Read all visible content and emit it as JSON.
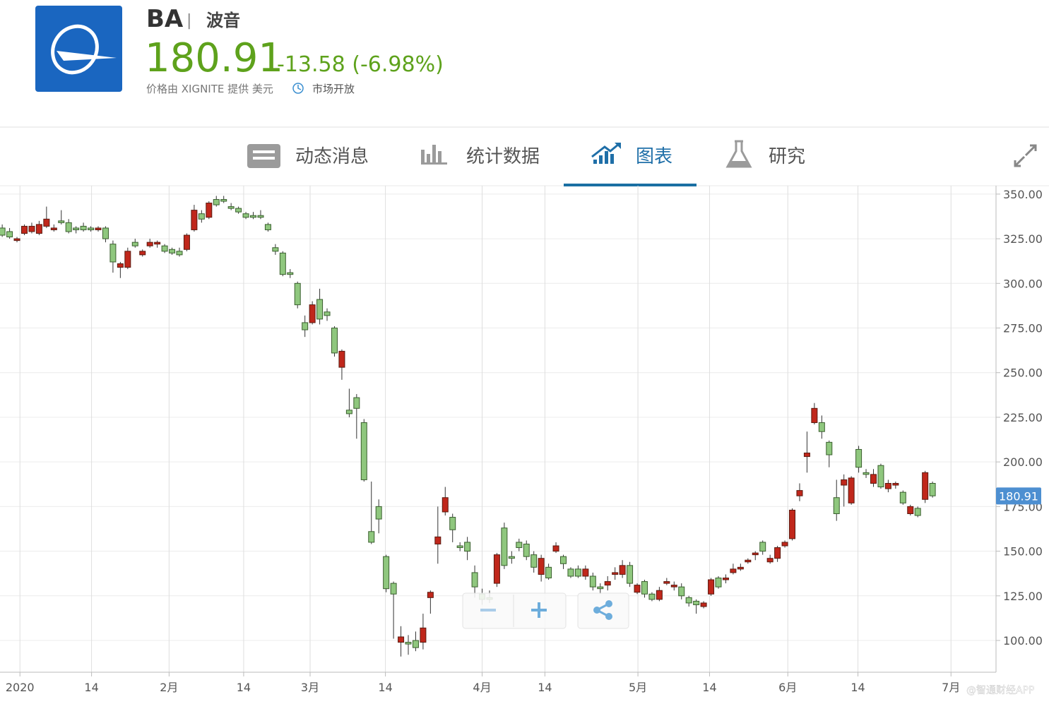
{
  "header": {
    "ticker": "BA",
    "name": "波音",
    "price": "180.91",
    "change": "-13.58 (-6.98%)",
    "source": "价格由 XIGNITE 提供 美元",
    "status": "市场开放"
  },
  "tabs": [
    "动态消息",
    "统计数据",
    "图表",
    "研究"
  ],
  "active_tab": 2,
  "watermark": "@智通财经APP",
  "chart_data": {
    "type": "candlestick",
    "up_color": "#c0271b",
    "down_color": "#8fc77e",
    "open": [
      331,
      329,
      324,
      328,
      329,
      328,
      332,
      330,
      335,
      334,
      331,
      332,
      331,
      330,
      331,
      322,
      309,
      309,
      323,
      316,
      321,
      322,
      321,
      319,
      318,
      319,
      330,
      339,
      337,
      347,
      347,
      343,
      342,
      339,
      338,
      338,
      333,
      320,
      317,
      306,
      300,
      278,
      278,
      291,
      284,
      275,
      253,
      229,
      236,
      222,
      161,
      175,
      147,
      132,
      99,
      99,
      100,
      99,
      124,
      154,
      172,
      169,
      153,
      155,
      138,
      126,
      124,
      132,
      163,
      147,
      155,
      154,
      148,
      137,
      141,
      150,
      147,
      140,
      140,
      136,
      136,
      130,
      131,
      137,
      137,
      142,
      127,
      133,
      126,
      123,
      132,
      130,
      130,
      124,
      122,
      119,
      126,
      135,
      134,
      138,
      140,
      144,
      148,
      155,
      144,
      146,
      153,
      157,
      181,
      203,
      222,
      222,
      211,
      180,
      187,
      177,
      207,
      194,
      188,
      198,
      185,
      187,
      183,
      171,
      174,
      179,
      188
    ],
    "high": [
      333,
      331,
      326,
      333,
      334,
      335,
      343,
      333,
      341,
      336,
      332,
      334,
      332,
      332,
      332,
      324,
      312,
      320,
      325,
      319,
      325,
      324,
      322,
      320,
      320,
      328,
      344,
      341,
      346,
      349,
      349,
      345,
      343,
      340,
      340,
      341,
      334,
      322,
      318,
      308,
      301,
      282,
      290,
      297,
      286,
      276,
      263,
      241,
      238,
      224,
      189,
      179,
      148,
      133,
      108,
      103,
      105,
      115,
      128,
      175,
      186,
      171,
      155,
      158,
      142,
      129,
      128,
      149,
      166,
      150,
      157,
      156,
      150,
      148,
      143,
      155,
      148,
      141,
      142,
      142,
      138,
      132,
      136,
      141,
      145,
      144,
      132,
      134,
      127,
      130,
      135,
      133,
      132,
      125,
      123,
      122,
      135,
      136,
      137,
      143,
      143,
      146,
      150,
      156,
      148,
      153,
      156,
      174,
      188,
      217,
      233,
      226,
      212,
      190,
      193,
      192,
      209,
      196,
      196,
      199,
      190,
      189,
      184,
      176,
      175,
      195,
      189
    ],
    "low": [
      326,
      325,
      323,
      327,
      328,
      327,
      331,
      329,
      333,
      328,
      328,
      329,
      329,
      329,
      323,
      306,
      303,
      308,
      320,
      315,
      320,
      320,
      317,
      316,
      315,
      318,
      329,
      334,
      336,
      343,
      345,
      341,
      339,
      336,
      336,
      336,
      329,
      316,
      304,
      303,
      286,
      270,
      277,
      277,
      279,
      259,
      246,
      225,
      213,
      189,
      154,
      160,
      127,
      101,
      91,
      92,
      94,
      95,
      115,
      143,
      170,
      155,
      150,
      145,
      124,
      120,
      121,
      130,
      140,
      143,
      150,
      145,
      138,
      133,
      134,
      149,
      140,
      135,
      135,
      134,
      128,
      126,
      128,
      134,
      135,
      130,
      126,
      124,
      122,
      122,
      131,
      128,
      123,
      119,
      115,
      118,
      125,
      129,
      132,
      137,
      139,
      143,
      145,
      148,
      143,
      144,
      152,
      156,
      178,
      194,
      221,
      213,
      197,
      167,
      175,
      176,
      194,
      191,
      186,
      185,
      183,
      185,
      176,
      170,
      169,
      177,
      180
    ],
    "close": [
      327,
      326,
      325,
      332,
      332,
      333,
      336,
      331,
      334,
      329,
      330,
      330,
      330,
      331,
      325,
      312,
      311,
      318,
      321,
      318,
      323,
      323,
      318,
      317,
      316,
      327,
      341,
      336,
      345,
      344,
      346,
      342,
      340,
      337,
      337,
      337,
      330,
      318,
      305,
      305,
      288,
      274,
      288,
      280,
      282,
      261,
      262,
      227,
      230,
      190,
      155,
      168,
      129,
      126,
      102,
      98,
      96,
      107,
      127,
      158,
      180,
      162,
      152,
      150,
      130,
      123,
      123,
      148,
      142,
      146,
      152,
      147,
      141,
      146,
      135,
      153,
      143,
      136,
      136,
      140,
      130,
      129,
      133,
      138,
      142,
      132,
      131,
      126,
      123,
      128,
      133,
      131,
      125,
      121,
      120,
      121,
      134,
      130,
      135,
      140,
      141,
      145,
      149,
      150,
      146,
      152,
      155,
      173,
      184,
      205,
      230,
      217,
      204,
      171,
      190,
      191,
      197,
      193,
      193,
      186,
      188,
      188,
      177,
      175,
      170,
      194,
      181
    ],
    "xlim": [
      -0.3,
      134.6
    ],
    "xticks": [
      {
        "value": 2.4,
        "label": "2020"
      },
      {
        "value": 12.1,
        "label": "14"
      },
      {
        "value": 22.6,
        "label": "2月"
      },
      {
        "value": 32.7,
        "label": "14"
      },
      {
        "value": 41.7,
        "label": "3月"
      },
      {
        "value": 51.9,
        "label": "14"
      },
      {
        "value": 65.0,
        "label": "4月"
      },
      {
        "value": 73.5,
        "label": "14"
      },
      {
        "value": 86.1,
        "label": "5月"
      },
      {
        "value": 95.8,
        "label": "14"
      },
      {
        "value": 106.4,
        "label": "6月"
      },
      {
        "value": 115.9,
        "label": "14"
      },
      {
        "value": 128.5,
        "label": "7月"
      }
    ],
    "ylim": [
      83,
      354.7
    ],
    "yticks": [
      {
        "value": 100,
        "label": "100.00"
      },
      {
        "value": 125,
        "label": "125.00"
      },
      {
        "value": 150,
        "label": "150.00"
      },
      {
        "value": 175,
        "label": "175.00"
      },
      {
        "value": 200,
        "label": "200.00"
      },
      {
        "value": 225,
        "label": "225.00"
      },
      {
        "value": 250,
        "label": "250.00"
      },
      {
        "value": 275,
        "label": "275.00"
      },
      {
        "value": 300,
        "label": "300.00"
      },
      {
        "value": 325,
        "label": "325.00"
      },
      {
        "value": 350,
        "label": "350.00"
      }
    ],
    "last_price": {
      "value": 180.91,
      "label": "180.91"
    },
    "grid": true
  }
}
